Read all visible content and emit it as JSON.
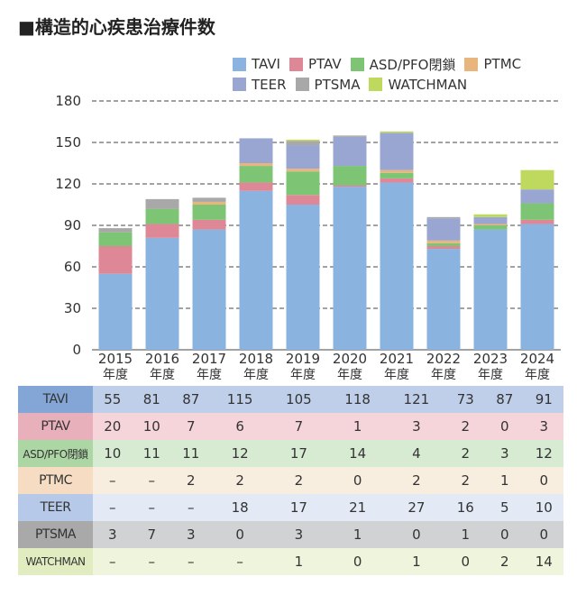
{
  "chart_data": {
    "type": "bar",
    "stacked": true,
    "title": "■構造的心疾患治療件数",
    "categories": [
      "2015\n年度",
      "2016\n年度",
      "2017\n年度",
      "2018\n年度",
      "2019\n年度",
      "2020\n年度",
      "2021\n年度",
      "2022\n年度",
      "2023\n年度",
      "2024\n年度"
    ],
    "category_years": [
      "2015",
      "2016",
      "2017",
      "2018",
      "2019",
      "2020",
      "2021",
      "2022",
      "2023",
      "2024"
    ],
    "category_suffix": "年度",
    "ylim": [
      0,
      180
    ],
    "yticks": [
      0,
      30,
      60,
      90,
      120,
      150,
      180
    ],
    "grid": "dashed horizontal",
    "legend": "top-right",
    "series": [
      {
        "name": "TAVI",
        "color": "#8bb3e0",
        "row_label_bg": "#84a6d6",
        "row_bg": "#bfcfe9",
        "values": [
          55,
          81,
          87,
          115,
          105,
          118,
          121,
          73,
          87,
          91
        ],
        "labels": [
          "55",
          "81",
          "87",
          "115",
          "105",
          "118",
          "121",
          "73",
          "87",
          "91"
        ]
      },
      {
        "name": "PTAV",
        "color": "#de8796",
        "row_label_bg": "#e8b0ba",
        "row_bg": "#f5d5da",
        "values": [
          20,
          10,
          7,
          6,
          7,
          1,
          3,
          2,
          0,
          3
        ],
        "labels": [
          "20",
          "10",
          "7",
          "6",
          "7",
          "1",
          "3",
          "2",
          "0",
          "3"
        ]
      },
      {
        "name": "ASD/PFO閉鎖",
        "color": "#7dc474",
        "row_label_bg": "#acd7a4",
        "row_bg": "#d6ebd2",
        "values": [
          10,
          11,
          11,
          12,
          17,
          14,
          4,
          2,
          3,
          12
        ],
        "labels": [
          "10",
          "11",
          "11",
          "12",
          "17",
          "14",
          "4",
          "2",
          "3",
          "12"
        ]
      },
      {
        "name": "PTMC",
        "color": "#e8b67c",
        "row_label_bg": "#f5dcc2",
        "row_bg": "#f8eee0",
        "values": [
          0,
          0,
          2,
          2,
          2,
          0,
          2,
          2,
          1,
          0
        ],
        "labels": [
          "–",
          "–",
          "2",
          "2",
          "2",
          "0",
          "2",
          "2",
          "1",
          "0"
        ]
      },
      {
        "name": "TEER",
        "color": "#9aa6d2",
        "row_label_bg": "#b6c9e8",
        "row_bg": "#e3e9f5",
        "values": [
          0,
          0,
          0,
          18,
          17,
          21,
          27,
          16,
          5,
          10
        ],
        "labels": [
          "–",
          "–",
          "–",
          "18",
          "17",
          "21",
          "27",
          "16",
          "5",
          "10"
        ]
      },
      {
        "name": "PTSMA",
        "color": "#a8a8a8",
        "row_label_bg": "#a9a9a9",
        "row_bg": "#d1d2d4",
        "values": [
          3,
          7,
          3,
          0,
          3,
          1,
          0,
          1,
          0,
          0
        ],
        "labels": [
          "3",
          "7",
          "3",
          "0",
          "3",
          "1",
          "0",
          "1",
          "0",
          "0"
        ]
      },
      {
        "name": "WATCHMAN",
        "color": "#bfd85e",
        "row_label_bg": "#e1edc0",
        "row_bg": "#eef5dc",
        "values": [
          0,
          0,
          0,
          0,
          1,
          0,
          1,
          0,
          2,
          14
        ],
        "labels": [
          "–",
          "–",
          "–",
          "–",
          "1",
          "0",
          "1",
          "0",
          "2",
          "14"
        ]
      }
    ]
  }
}
